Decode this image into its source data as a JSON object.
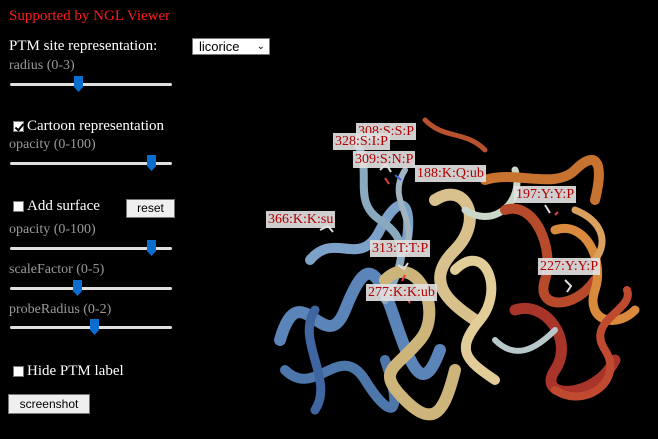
{
  "header": {
    "banner": "Supported by NGL Viewer"
  },
  "controls": {
    "ptm_representation": {
      "label": "PTM site representation:",
      "selected": "licorice"
    },
    "radius": {
      "label": "radius (0-3)",
      "value_fraction": 0.42
    },
    "cartoon": {
      "label": "Cartoon representation",
      "checked": true
    },
    "cartoon_opacity": {
      "label": "opacity (0-100)",
      "value_fraction": 0.9
    },
    "surface": {
      "label": "Add surface",
      "checked": false,
      "reset_label": "reset"
    },
    "surface_opacity": {
      "label": "opacity (0-100)",
      "value_fraction": 0.9
    },
    "scale_factor": {
      "label": "scaleFactor (0-5)",
      "value_fraction": 0.41
    },
    "probe_radius": {
      "label": "probeRadius (0-2)",
      "value_fraction": 0.52
    },
    "hide_label": {
      "label": "Hide PTM label",
      "checked": false
    },
    "screenshot_label": "screenshot"
  },
  "ptm_labels": [
    "308:S:S:P",
    "328:S:I:P",
    "309:S:N:P",
    "188:K:Q:ub",
    "197:Y:Y:P",
    "366:K:K:su",
    "313:T:T:P",
    "227:Y:Y:P",
    "277:K:K:ub"
  ],
  "colors": {
    "banner": "#ff1a1a",
    "label_text": "#b00000",
    "slider_thumb": "#0a6ed1"
  }
}
